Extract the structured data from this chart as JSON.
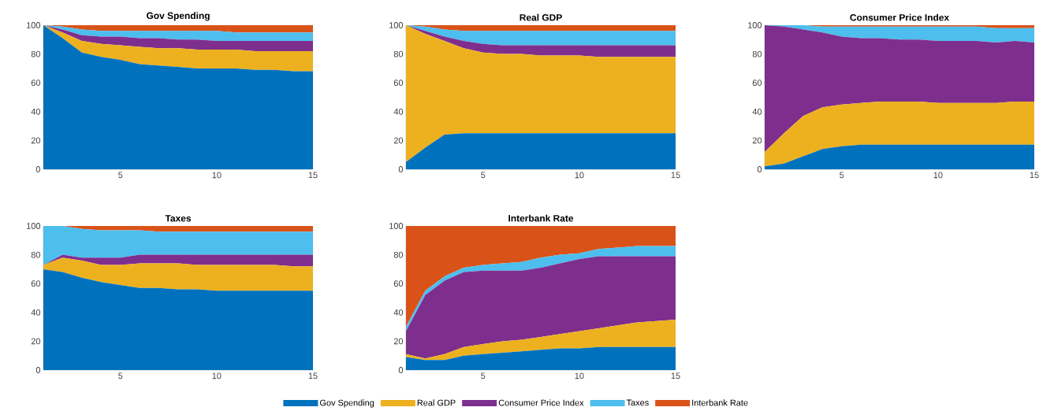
{
  "chart_data": [
    {
      "type": "area",
      "stacked": true,
      "title": "Gov Spending",
      "x": [
        1,
        2,
        3,
        4,
        5,
        6,
        7,
        8,
        9,
        10,
        11,
        12,
        13,
        14,
        15
      ],
      "xlim": [
        1,
        15
      ],
      "xticks": [
        5,
        10,
        15
      ],
      "ylim": [
        0,
        100
      ],
      "yticks": [
        0,
        20,
        40,
        60,
        80,
        100
      ],
      "series": [
        {
          "color": "#0072bd",
          "values": [
            100,
            91,
            81,
            78,
            76,
            73,
            72,
            71,
            70,
            70,
            70,
            69,
            69,
            68,
            68
          ]
        },
        {
          "color": "#edb120",
          "values": [
            0,
            4,
            8,
            9,
            10,
            12,
            12,
            13,
            13,
            13,
            13,
            13,
            13,
            14,
            14
          ]
        },
        {
          "color": "#7e2f8e",
          "values": [
            0,
            2,
            4,
            5,
            6,
            6,
            7,
            6,
            7,
            6,
            6,
            7,
            7,
            7,
            7
          ]
        },
        {
          "color": "#4dbeee",
          "values": [
            0,
            2,
            4,
            4,
            4,
            5,
            5,
            6,
            6,
            7,
            6,
            6,
            6,
            6,
            6
          ]
        },
        {
          "color": "#d95319",
          "values": [
            0,
            1,
            3,
            4,
            4,
            4,
            4,
            4,
            4,
            4,
            5,
            5,
            5,
            5,
            5
          ]
        }
      ]
    },
    {
      "type": "area",
      "stacked": true,
      "title": "Real GDP",
      "x": [
        1,
        2,
        3,
        4,
        5,
        6,
        7,
        8,
        9,
        10,
        11,
        12,
        13,
        14,
        15
      ],
      "xlim": [
        1,
        15
      ],
      "xticks": [
        5,
        10,
        15
      ],
      "ylim": [
        0,
        100
      ],
      "yticks": [
        0,
        20,
        40,
        60,
        80,
        100
      ],
      "series": [
        {
          "color": "#0072bd",
          "values": [
            5,
            15,
            24,
            25,
            25,
            25,
            25,
            25,
            25,
            25,
            25,
            25,
            25,
            25,
            25
          ]
        },
        {
          "color": "#edb120",
          "values": [
            95,
            79,
            65,
            59,
            56,
            55,
            55,
            54,
            54,
            54,
            53,
            53,
            53,
            53,
            53
          ]
        },
        {
          "color": "#7e2f8e",
          "values": [
            0,
            2,
            3,
            5,
            6,
            6,
            6,
            7,
            7,
            7,
            8,
            8,
            8,
            8,
            8
          ]
        },
        {
          "color": "#4dbeee",
          "values": [
            0,
            3,
            5,
            7,
            9,
            10,
            10,
            10,
            10,
            10,
            10,
            10,
            10,
            10,
            10
          ]
        },
        {
          "color": "#d95319",
          "values": [
            0,
            1,
            3,
            4,
            4,
            4,
            4,
            4,
            4,
            4,
            4,
            4,
            4,
            4,
            4
          ]
        }
      ]
    },
    {
      "type": "area",
      "stacked": true,
      "title": "Consumer Price Index",
      "x": [
        1,
        2,
        3,
        4,
        5,
        6,
        7,
        8,
        9,
        10,
        11,
        12,
        13,
        14,
        15
      ],
      "xlim": [
        1,
        15
      ],
      "xticks": [
        5,
        10,
        15
      ],
      "ylim": [
        0,
        100
      ],
      "yticks": [
        0,
        20,
        40,
        60,
        80,
        100
      ],
      "series": [
        {
          "color": "#0072bd",
          "values": [
            2,
            4,
            9,
            14,
            16,
            17,
            17,
            17,
            17,
            17,
            17,
            17,
            17,
            17,
            17
          ]
        },
        {
          "color": "#edb120",
          "values": [
            10,
            21,
            28,
            29,
            29,
            29,
            30,
            30,
            30,
            29,
            29,
            29,
            29,
            30,
            30
          ]
        },
        {
          "color": "#7e2f8e",
          "values": [
            88,
            74,
            60,
            52,
            47,
            45,
            44,
            43,
            43,
            43,
            43,
            43,
            42,
            42,
            41
          ]
        },
        {
          "color": "#4dbeee",
          "values": [
            0,
            1,
            3,
            4,
            7,
            8,
            8,
            9,
            9,
            10,
            10,
            10,
            10,
            9,
            10
          ]
        },
        {
          "color": "#d95319",
          "values": [
            0,
            0,
            0,
            1,
            1,
            1,
            1,
            1,
            1,
            1,
            1,
            1,
            2,
            2,
            2
          ]
        }
      ]
    },
    {
      "type": "area",
      "stacked": true,
      "title": "Taxes",
      "x": [
        1,
        2,
        3,
        4,
        5,
        6,
        7,
        8,
        9,
        10,
        11,
        12,
        13,
        14,
        15
      ],
      "xlim": [
        1,
        15
      ],
      "xticks": [
        5,
        10,
        15
      ],
      "ylim": [
        0,
        100
      ],
      "yticks": [
        0,
        20,
        40,
        60,
        80,
        100
      ],
      "series": [
        {
          "color": "#0072bd",
          "values": [
            70,
            68,
            64,
            61,
            59,
            57,
            57,
            56,
            56,
            55,
            55,
            55,
            55,
            55,
            55
          ]
        },
        {
          "color": "#edb120",
          "values": [
            3,
            10,
            12,
            12,
            14,
            17,
            17,
            18,
            17,
            18,
            18,
            18,
            18,
            17,
            17
          ]
        },
        {
          "color": "#7e2f8e",
          "values": [
            0,
            2,
            2,
            5,
            5,
            6,
            6,
            6,
            7,
            7,
            7,
            7,
            7,
            8,
            8
          ]
        },
        {
          "color": "#4dbeee",
          "values": [
            27,
            20,
            20,
            19,
            19,
            17,
            16,
            16,
            16,
            16,
            16,
            16,
            16,
            16,
            16
          ]
        },
        {
          "color": "#d95319",
          "values": [
            0,
            0,
            2,
            3,
            3,
            3,
            4,
            4,
            4,
            4,
            4,
            4,
            4,
            4,
            4
          ]
        }
      ]
    },
    {
      "type": "area",
      "stacked": true,
      "title": "Interbank Rate",
      "legend": "bottom",
      "x": [
        1,
        2,
        3,
        4,
        5,
        6,
        7,
        8,
        9,
        10,
        11,
        12,
        13,
        14,
        15
      ],
      "xlim": [
        1,
        15
      ],
      "xticks": [
        5,
        10,
        15
      ],
      "ylim": [
        0,
        100
      ],
      "yticks": [
        0,
        20,
        40,
        60,
        80,
        100
      ],
      "series": [
        {
          "name": "Gov Spending",
          "color": "#0072bd",
          "values": [
            9,
            7,
            7,
            10,
            11,
            12,
            13,
            14,
            15,
            15,
            16,
            16,
            16,
            16,
            16
          ]
        },
        {
          "name": "Real GDP",
          "color": "#edb120",
          "values": [
            2,
            1,
            4,
            6,
            7,
            8,
            8,
            9,
            10,
            12,
            13,
            15,
            17,
            18,
            19
          ]
        },
        {
          "name": "Consumer Price Index",
          "color": "#7e2f8e",
          "values": [
            16,
            44,
            51,
            52,
            51,
            49,
            48,
            48,
            49,
            50,
            50,
            48,
            46,
            45,
            44
          ]
        },
        {
          "name": "Taxes",
          "color": "#4dbeee",
          "values": [
            3,
            3,
            3,
            3,
            4,
            5,
            6,
            7,
            6,
            4,
            5,
            6,
            7,
            7,
            7
          ]
        },
        {
          "name": "Interbank Rate",
          "color": "#d95319",
          "values": [
            70,
            45,
            35,
            29,
            27,
            26,
            25,
            22,
            20,
            19,
            16,
            15,
            14,
            14,
            14
          ]
        }
      ]
    }
  ]
}
